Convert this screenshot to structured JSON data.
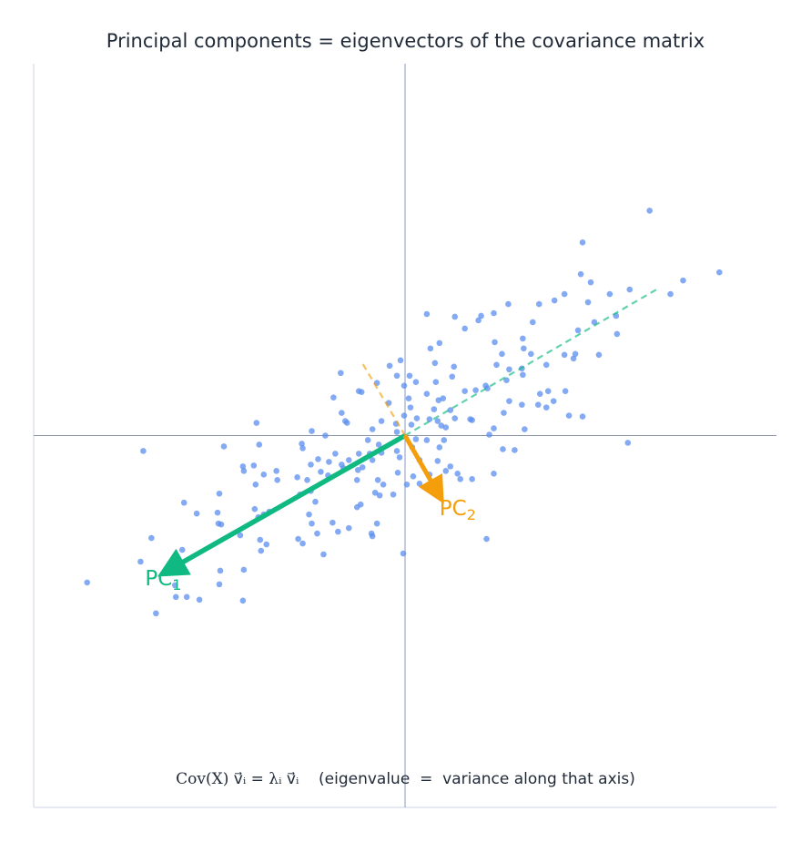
{
  "title": "Principal components  =  eigenvectors of the covariance matrix",
  "caption": {
    "formula": "Cov(X) v⃗ᵢ = λᵢ v⃗ᵢ",
    "note": "(eigenvalue  =  variance along that axis)"
  },
  "chart_data": {
    "type": "scatter",
    "xlim": [
      -4.1,
      4.1
    ],
    "ylim": [
      -4.1,
      4.1
    ],
    "grid": false,
    "axes_through_origin": true,
    "colors": {
      "points": "#5b8def",
      "pc1": "#10b981",
      "pc2": "#f59e0b",
      "axis": "#8a94a6",
      "frame": "#dde1ee"
    },
    "points": [
      [
        2.7,
        2.48
      ],
      [
        1.96,
        2.13
      ],
      [
        3.47,
        1.8
      ],
      [
        3.07,
        1.71
      ],
      [
        2.93,
        1.56
      ],
      [
        2.48,
        1.61
      ],
      [
        1.94,
        1.78
      ],
      [
        2.05,
        1.69
      ],
      [
        2.26,
        1.56
      ],
      [
        1.76,
        1.56
      ],
      [
        1.65,
        1.49
      ],
      [
        1.48,
        1.45
      ],
      [
        1.14,
        1.45
      ],
      [
        2.02,
        1.47
      ],
      [
        2.33,
        1.32
      ],
      [
        2.09,
        1.25
      ],
      [
        1.41,
        1.25
      ],
      [
        0.98,
        1.35
      ],
      [
        0.84,
        1.32
      ],
      [
        0.81,
        1.27
      ],
      [
        0.55,
        1.31
      ],
      [
        0.24,
        1.34
      ],
      [
        0.66,
        1.18
      ],
      [
        2.34,
        1.12
      ],
      [
        1.91,
        1.16
      ],
      [
        1.3,
        1.07
      ],
      [
        0.99,
        1.03
      ],
      [
        0.38,
        1.02
      ],
      [
        0.28,
        0.96
      ],
      [
        1.31,
        0.96
      ],
      [
        1.07,
        0.9
      ],
      [
        1.39,
        0.9
      ],
      [
        1.76,
        0.89
      ],
      [
        1.88,
        0.9
      ],
      [
        2.14,
        0.89
      ],
      [
        1.86,
        0.85
      ],
      [
        0.33,
        0.8
      ],
      [
        0.54,
        0.76
      ],
      [
        -0.05,
        0.83
      ],
      [
        -0.17,
        0.77
      ],
      [
        -0.71,
        0.69
      ],
      [
        1.01,
        0.78
      ],
      [
        1.29,
        0.74
      ],
      [
        1.56,
        0.78
      ],
      [
        1.15,
        0.73
      ],
      [
        -0.09,
        0.66
      ],
      [
        0.05,
        0.66
      ],
      [
        0.52,
        0.65
      ],
      [
        0.89,
        0.55
      ],
      [
        1.12,
        0.61
      ],
      [
        1.3,
        0.67
      ],
      [
        -0.31,
        0.58
      ],
      [
        0.12,
        0.59
      ],
      [
        0.34,
        0.59
      ],
      [
        0.78,
        0.5
      ],
      [
        0.91,
        0.52
      ],
      [
        -0.51,
        0.49
      ],
      [
        -0.48,
        0.48
      ],
      [
        -0.01,
        0.55
      ],
      [
        0.24,
        0.46
      ],
      [
        0.66,
        0.49
      ],
      [
        1.49,
        0.46
      ],
      [
        1.58,
        0.49
      ],
      [
        1.77,
        0.49
      ],
      [
        1.64,
        0.38
      ],
      [
        -0.79,
        0.42
      ],
      [
        0.04,
        0.41
      ],
      [
        0.42,
        0.41
      ],
      [
        0.37,
        0.39
      ],
      [
        1.15,
        0.38
      ],
      [
        1.29,
        0.34
      ],
      [
        1.47,
        0.34
      ],
      [
        1.56,
        0.31
      ],
      [
        -0.18,
        0.36
      ],
      [
        0.06,
        0.31
      ],
      [
        0.5,
        0.28
      ],
      [
        0.32,
        0.29
      ],
      [
        1.09,
        0.25
      ],
      [
        1.81,
        0.22
      ],
      [
        1.96,
        0.21
      ],
      [
        -0.7,
        0.25
      ],
      [
        -0.66,
        0.16
      ],
      [
        -0.64,
        0.14
      ],
      [
        -0.01,
        0.22
      ],
      [
        0.13,
        0.19
      ],
      [
        0.27,
        0.18
      ],
      [
        0.36,
        0.16
      ],
      [
        0.55,
        0.19
      ],
      [
        0.72,
        0.18
      ],
      [
        0.74,
        0.17
      ],
      [
        -0.26,
        0.16
      ],
      [
        -0.1,
        0.13
      ],
      [
        0.07,
        0.12
      ],
      [
        0.4,
        0.11
      ],
      [
        0.45,
        0.09
      ],
      [
        0.98,
        0.08
      ],
      [
        1.32,
        0.07
      ],
      [
        -1.64,
        0.14
      ],
      [
        -1.03,
        0.05
      ],
      [
        -0.88,
        0.0
      ],
      [
        -0.36,
        0.07
      ],
      [
        -0.09,
        0.04
      ],
      [
        0.93,
        0.01
      ],
      [
        0.12,
        -0.04
      ],
      [
        0.24,
        -0.05
      ],
      [
        0.43,
        -0.05
      ],
      [
        2.46,
        -0.08
      ],
      [
        -2.89,
        -0.17
      ],
      [
        -2.0,
        -0.12
      ],
      [
        -1.61,
        -0.1
      ],
      [
        -1.14,
        -0.09
      ],
      [
        -1.13,
        -0.14
      ],
      [
        -0.41,
        -0.05
      ],
      [
        -0.29,
        -0.1
      ],
      [
        -0.39,
        -0.2
      ],
      [
        -0.26,
        -0.19
      ],
      [
        -0.09,
        -0.17
      ],
      [
        0.08,
        -0.13
      ],
      [
        0.38,
        -0.13
      ],
      [
        -0.77,
        -0.2
      ],
      [
        -0.51,
        -0.2
      ],
      [
        1.08,
        -0.15
      ],
      [
        1.21,
        -0.16
      ],
      [
        -0.96,
        -0.26
      ],
      [
        -0.62,
        -0.27
      ],
      [
        -0.36,
        -0.27
      ],
      [
        -0.06,
        -0.24
      ],
      [
        0.16,
        -0.27
      ],
      [
        0.36,
        -0.28
      ],
      [
        -1.04,
        -0.32
      ],
      [
        -0.84,
        -0.29
      ],
      [
        -0.7,
        -0.32
      ],
      [
        -0.68,
        -0.36
      ],
      [
        -0.52,
        -0.38
      ],
      [
        -0.47,
        -0.35
      ],
      [
        0.5,
        -0.34
      ],
      [
        -1.79,
        -0.34
      ],
      [
        -1.67,
        -0.33
      ],
      [
        -1.42,
        -0.39
      ],
      [
        -1.78,
        -0.39
      ],
      [
        -1.56,
        -0.43
      ],
      [
        -0.93,
        -0.4
      ],
      [
        -1.19,
        -0.46
      ],
      [
        -1.08,
        -0.49
      ],
      [
        -0.85,
        -0.44
      ],
      [
        -0.08,
        -0.41
      ],
      [
        0.09,
        -0.45
      ],
      [
        0.27,
        -0.43
      ],
      [
        0.45,
        -0.39
      ],
      [
        0.58,
        -0.42
      ],
      [
        0.98,
        -0.42
      ],
      [
        -1.41,
        -0.49
      ],
      [
        -0.53,
        -0.49
      ],
      [
        -0.3,
        -0.49
      ],
      [
        -0.24,
        -0.54
      ],
      [
        0.02,
        -0.54
      ],
      [
        0.16,
        -0.53
      ],
      [
        0.35,
        -0.5
      ],
      [
        0.61,
        -0.48
      ],
      [
        0.74,
        -0.48
      ],
      [
        -1.65,
        -0.54
      ],
      [
        -1.04,
        -0.61
      ],
      [
        -0.33,
        -0.63
      ],
      [
        -0.28,
        -0.66
      ],
      [
        -0.13,
        -0.65
      ],
      [
        -2.05,
        -0.64
      ],
      [
        -1.16,
        -0.65
      ],
      [
        -0.99,
        -0.73
      ],
      [
        -0.49,
        -0.76
      ],
      [
        -2.44,
        -0.74
      ],
      [
        -0.53,
        -0.79
      ],
      [
        -1.66,
        -0.81
      ],
      [
        -1.56,
        -0.87
      ],
      [
        -1.5,
        -0.84
      ],
      [
        -2.3,
        -0.86
      ],
      [
        -2.07,
        -0.85
      ],
      [
        -1.62,
        -0.9
      ],
      [
        -1.06,
        -0.87
      ],
      [
        -1.03,
        -0.97
      ],
      [
        -0.8,
        -0.96
      ],
      [
        -0.62,
        -1.02
      ],
      [
        -0.31,
        -0.97
      ],
      [
        -2.06,
        -0.97
      ],
      [
        -2.03,
        -0.98
      ],
      [
        -1.82,
        -1.1
      ],
      [
        -0.74,
        -1.06
      ],
      [
        -0.97,
        -1.08
      ],
      [
        -0.37,
        -1.08
      ],
      [
        -0.36,
        -1.11
      ],
      [
        -2.8,
        -1.13
      ],
      [
        -1.6,
        -1.15
      ],
      [
        -1.18,
        -1.14
      ],
      [
        -1.13,
        -1.19
      ],
      [
        0.9,
        -1.14
      ],
      [
        -2.46,
        -1.26
      ],
      [
        -1.59,
        -1.27
      ],
      [
        -1.53,
        -1.2
      ],
      [
        -0.9,
        -1.31
      ],
      [
        -0.02,
        -1.3
      ],
      [
        -2.92,
        -1.39
      ],
      [
        -2.04,
        -1.49
      ],
      [
        -1.78,
        -1.48
      ],
      [
        -2.05,
        -1.64
      ],
      [
        -3.51,
        -1.62
      ],
      [
        -2.54,
        -1.65
      ],
      [
        -2.53,
        -1.78
      ],
      [
        -2.41,
        -1.78
      ],
      [
        -2.27,
        -1.81
      ],
      [
        -1.79,
        -1.82
      ],
      [
        -2.75,
        -1.96
      ]
    ],
    "vectors": [
      {
        "label": "PC",
        "subscript": "1",
        "tip": [
          -2.76,
          -1.57
        ],
        "dashed_extension": [
          2.81,
          1.63
        ],
        "color": "#10b981"
      },
      {
        "label": "PC",
        "subscript": "2",
        "tip": [
          0.44,
          -0.77
        ],
        "dashed_extension": [
          -0.49,
          0.83
        ],
        "color": "#f59e0b"
      }
    ]
  }
}
